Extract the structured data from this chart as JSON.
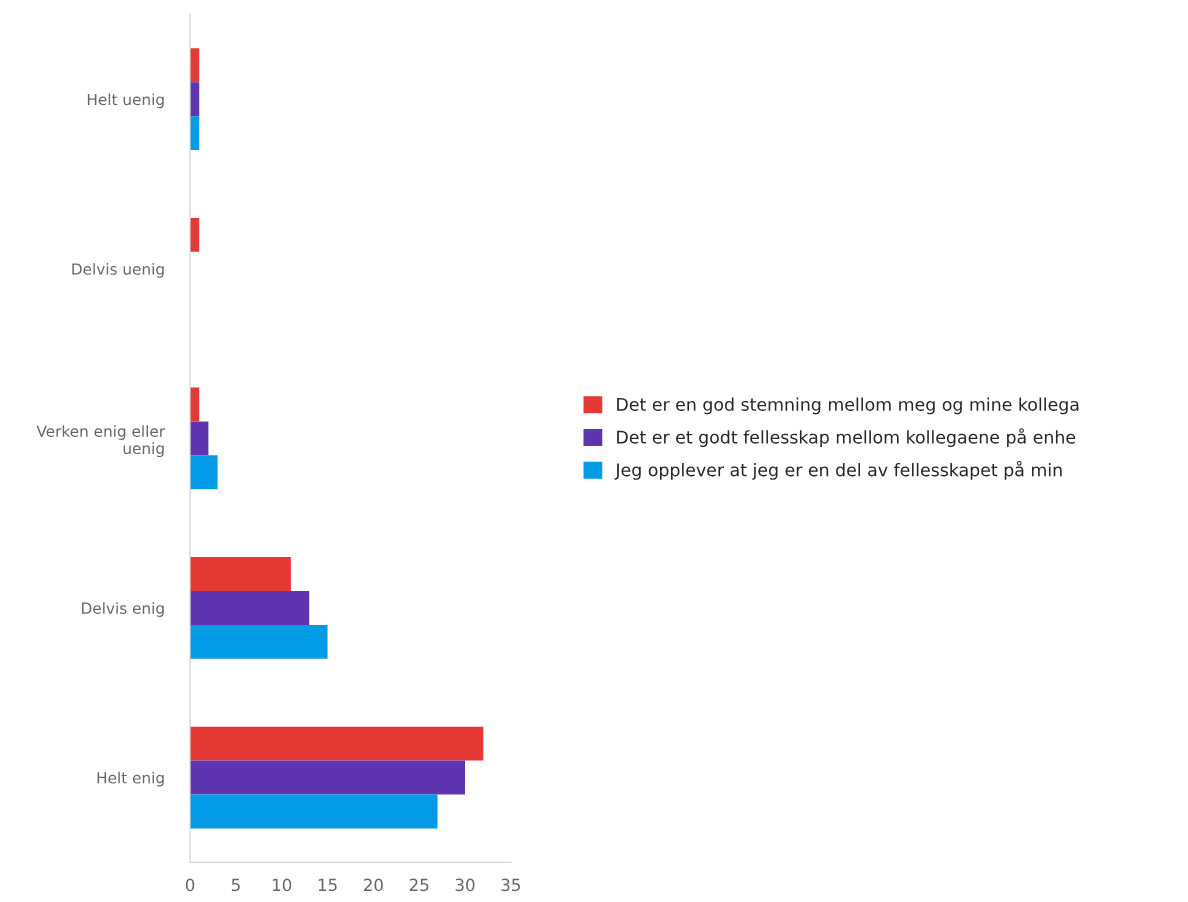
{
  "chart_data": {
    "type": "bar",
    "orientation": "horizontal",
    "categories": [
      "Helt uenig",
      "Delvis uenig",
      "Verken enig eller\nuenig",
      "Delvis enig",
      "Helt enig"
    ],
    "series": [
      {
        "name": "Det er en god stemning mellom meg og mine kollega",
        "color": "#e53935",
        "values": [
          1,
          1,
          1,
          11,
          32
        ]
      },
      {
        "name": "Det er et godt fellesskap mellom kollegaene på enhe",
        "color": "#5e35b1",
        "values": [
          1,
          0,
          2,
          13,
          30
        ]
      },
      {
        "name": "Jeg opplever at jeg er en del av fellesskapet på min",
        "color": "#039be5",
        "values": [
          1,
          0,
          3,
          15,
          27
        ]
      }
    ],
    "xlim": [
      0,
      35
    ],
    "xticks": [
      0,
      5,
      10,
      15,
      20,
      25,
      30,
      35
    ],
    "grid": false,
    "legend": "right"
  }
}
